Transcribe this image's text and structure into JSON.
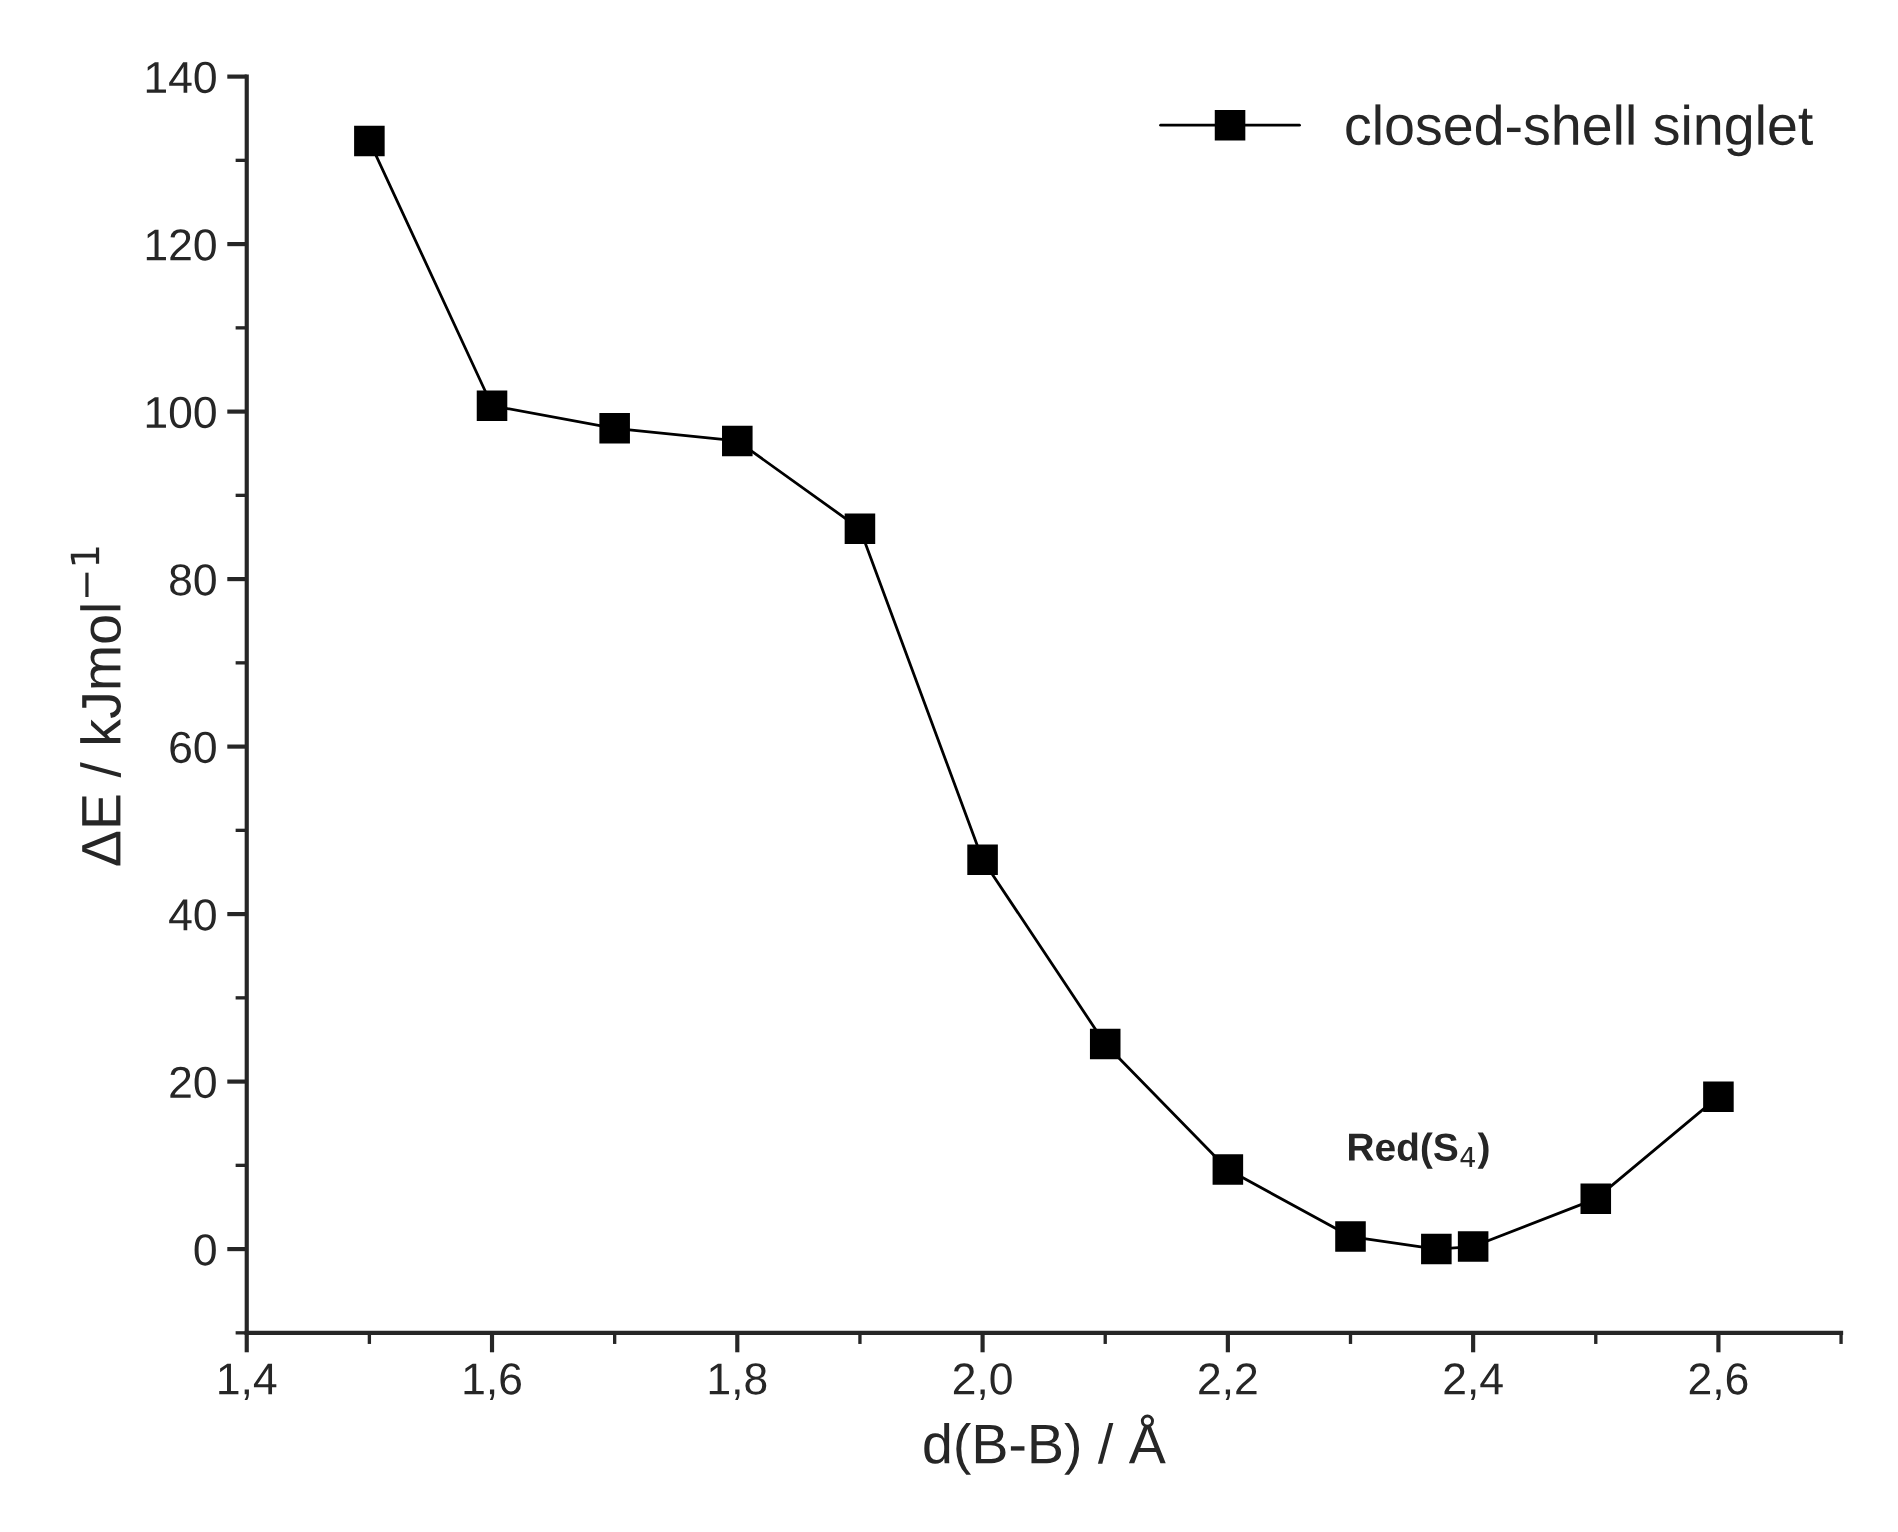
{
  "chart_data": {
    "type": "line",
    "xlabel": "d(B-B) / Å",
    "ylabel": "ΔE / kJmol$^{−1}$",
    "series": [
      {
        "name": "closed-shell singlet",
        "color": "#000000",
        "x": [
          1.5,
          1.6,
          1.7,
          1.8,
          1.9,
          2.0,
          2.1,
          2.2,
          2.3,
          2.37,
          2.4,
          2.5,
          2.6
        ],
        "values": [
          132.3,
          100.7,
          98,
          96.5,
          86,
          46.5,
          24.5,
          9.5,
          1.5,
          0,
          0.3,
          6,
          18.2
        ]
      }
    ],
    "marker": "square",
    "line_style": "solid",
    "legend": "top right",
    "grid": false,
    "annotations": [
      "Red(S$_{4}$)"
    ],
    "xlim": [
      1.4,
      2.7
    ],
    "ylim": [
      -10,
      140
    ],
    "xticks": [
      {
        "value": 1.4,
        "label": "1,4"
      },
      {
        "value": 1.6,
        "label": "1,6"
      },
      {
        "value": 1.8,
        "label": "1,8"
      },
      {
        "value": 2.0,
        "label": "2,0"
      },
      {
        "value": 2.2,
        "label": "2,2"
      },
      {
        "value": 2.4,
        "label": "2,4"
      },
      {
        "value": 2.6,
        "label": "2,6"
      }
    ],
    "yticks": [
      0,
      20,
      40,
      60,
      80,
      100,
      120,
      140
    ]
  }
}
